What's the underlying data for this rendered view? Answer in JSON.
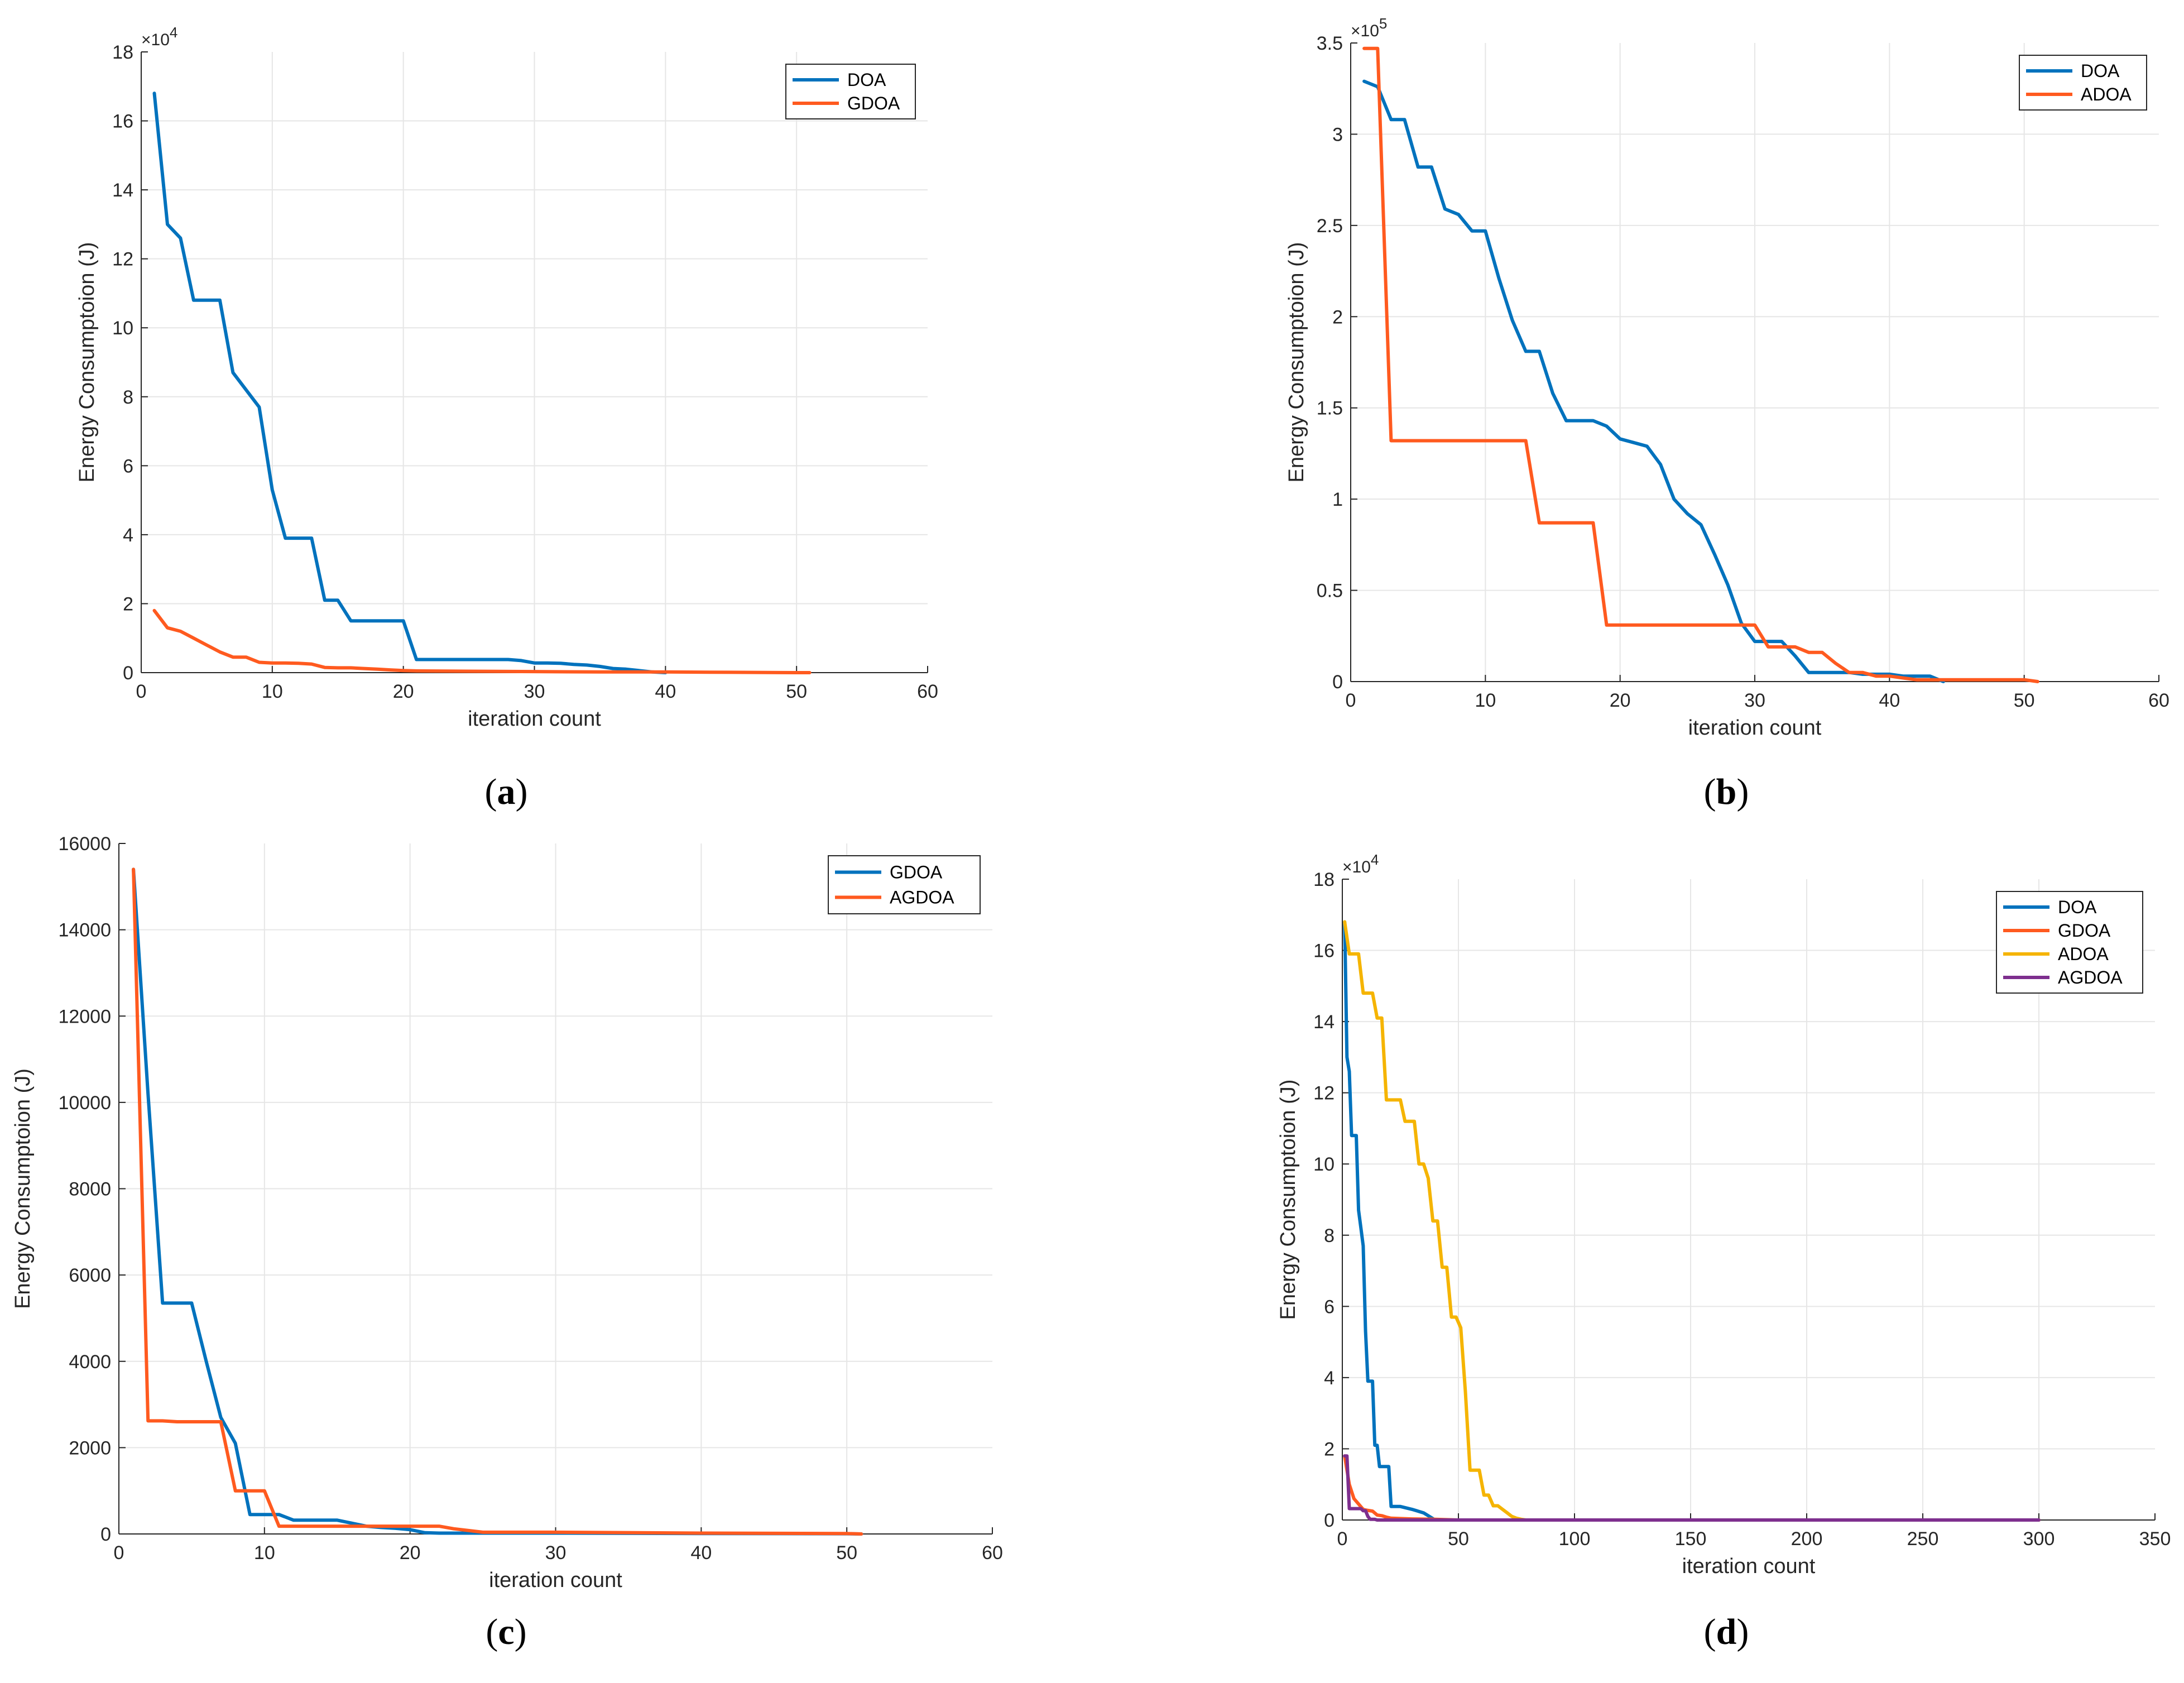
{
  "colors": {
    "blue": "#0072BD",
    "orange": "#FF5A1F",
    "yellow": "#F5B400",
    "purple": "#7E2F8E",
    "grid": "#e6e6e6",
    "axis": "#262626"
  },
  "chart_data": [
    {
      "type": "line",
      "caption": {
        "open": "(",
        "letter": "a",
        "close": ")"
      },
      "xlabel": "iteration count",
      "ylabel": "Energy Consumptoion (J)",
      "xlim": [
        0,
        60
      ],
      "ylim": [
        0,
        18
      ],
      "xticks": [
        0,
        10,
        20,
        30,
        40,
        50,
        60
      ],
      "yticks": [
        0,
        2,
        4,
        6,
        8,
        10,
        12,
        14,
        16,
        18
      ],
      "ytick_labels": [
        "0",
        "2",
        "4",
        "6",
        "8",
        "10",
        "12",
        "14",
        "16",
        "18"
      ],
      "y_multiplier": {
        "base": "×10",
        "power": "4"
      },
      "grid": true,
      "legend_position": "top-right",
      "series": [
        {
          "name": "DOA",
          "color": "#0072BD",
          "x": [
            1,
            2,
            3,
            4,
            5,
            6,
            7,
            8,
            9,
            10,
            11,
            12,
            13,
            14,
            15,
            16,
            17,
            18,
            19,
            20,
            21,
            22,
            23,
            24,
            25,
            26,
            27,
            28,
            29,
            30,
            31,
            32,
            33,
            34,
            35,
            36,
            37,
            38,
            39,
            40
          ],
          "y": [
            16.8,
            13.0,
            12.6,
            10.8,
            10.8,
            10.8,
            8.7,
            8.2,
            7.7,
            5.3,
            3.9,
            3.9,
            3.9,
            2.1,
            2.1,
            1.5,
            1.5,
            1.5,
            1.5,
            1.5,
            0.38,
            0.38,
            0.38,
            0.38,
            0.38,
            0.38,
            0.38,
            0.38,
            0.35,
            0.28,
            0.28,
            0.27,
            0.24,
            0.22,
            0.18,
            0.12,
            0.1,
            0.06,
            0.02,
            0.0
          ]
        },
        {
          "name": "GDOA",
          "color": "#FF5A1F",
          "x": [
            1,
            2,
            3,
            4,
            5,
            6,
            7,
            8,
            9,
            10,
            11,
            12,
            13,
            14,
            15,
            16,
            17,
            18,
            19,
            20,
            21,
            25,
            30,
            35,
            40,
            45,
            50,
            51
          ],
          "y": [
            1.8,
            1.3,
            1.2,
            1.0,
            0.8,
            0.6,
            0.45,
            0.45,
            0.3,
            0.28,
            0.28,
            0.27,
            0.25,
            0.15,
            0.14,
            0.14,
            0.12,
            0.1,
            0.08,
            0.06,
            0.05,
            0.04,
            0.03,
            0.02,
            0.02,
            0.01,
            0.0,
            0.0
          ]
        }
      ]
    },
    {
      "type": "line",
      "caption": {
        "open": "(",
        "letter": "b",
        "close": ")"
      },
      "xlabel": "iteration count",
      "ylabel": "Energy Consumptoion (J)",
      "xlim": [
        0,
        60
      ],
      "ylim": [
        0,
        3.5
      ],
      "xticks": [
        0,
        10,
        20,
        30,
        40,
        50,
        60
      ],
      "yticks": [
        0,
        0.5,
        1,
        1.5,
        2,
        2.5,
        3,
        3.5
      ],
      "ytick_labels": [
        "0",
        "0.5",
        "1",
        "1.5",
        "2",
        "2.5",
        "3",
        "3.5"
      ],
      "y_multiplier": {
        "base": "×10",
        "power": "5"
      },
      "grid": true,
      "legend_position": "top-right",
      "series": [
        {
          "name": "DOA",
          "color": "#0072BD",
          "x": [
            1,
            2,
            3,
            4,
            5,
            6,
            7,
            8,
            9,
            10,
            11,
            12,
            13,
            14,
            15,
            16,
            17,
            18,
            19,
            20,
            21,
            22,
            23,
            24,
            25,
            26,
            27,
            28,
            29,
            30,
            31,
            32,
            33,
            34,
            35,
            36,
            37,
            38,
            39,
            40,
            41,
            42,
            43,
            44
          ],
          "y": [
            3.29,
            3.26,
            3.08,
            3.08,
            2.82,
            2.82,
            2.59,
            2.56,
            2.47,
            2.47,
            2.21,
            1.98,
            1.81,
            1.81,
            1.58,
            1.43,
            1.43,
            1.43,
            1.4,
            1.33,
            1.31,
            1.29,
            1.19,
            1.0,
            0.92,
            0.86,
            0.7,
            0.53,
            0.32,
            0.22,
            0.22,
            0.22,
            0.14,
            0.05,
            0.05,
            0.05,
            0.05,
            0.04,
            0.04,
            0.04,
            0.03,
            0.03,
            0.03,
            0.0
          ]
        },
        {
          "name": "ADOA",
          "color": "#FF5A1F",
          "x": [
            1,
            2,
            3,
            4,
            13,
            14,
            15,
            16,
            17,
            18,
            19,
            20,
            30,
            31,
            32,
            33,
            34,
            35,
            36,
            37,
            38,
            39,
            40,
            41,
            42,
            45,
            50,
            51
          ],
          "y": [
            3.47,
            3.47,
            1.32,
            1.32,
            1.32,
            0.87,
            0.87,
            0.87,
            0.87,
            0.87,
            0.31,
            0.31,
            0.31,
            0.19,
            0.19,
            0.19,
            0.16,
            0.16,
            0.1,
            0.05,
            0.05,
            0.03,
            0.03,
            0.02,
            0.01,
            0.01,
            0.01,
            0.0
          ]
        }
      ]
    },
    {
      "type": "line",
      "caption": {
        "open": "(",
        "letter": "c",
        "close": ")"
      },
      "xlabel": "iteration count",
      "ylabel": "Energy Consumptoion (J)",
      "xlim": [
        0,
        60
      ],
      "ylim": [
        0,
        16000
      ],
      "xticks": [
        0,
        10,
        20,
        30,
        40,
        50,
        60
      ],
      "yticks": [
        0,
        2000,
        4000,
        6000,
        8000,
        10000,
        12000,
        14000,
        16000
      ],
      "ytick_labels": [
        "0",
        "2000",
        "4000",
        "6000",
        "8000",
        "10000",
        "12000",
        "14000",
        "16000"
      ],
      "grid": true,
      "legend_position": "top-right",
      "series": [
        {
          "name": "GDOA",
          "color": "#0072BD",
          "x": [
            1,
            2,
            3,
            4,
            5,
            6,
            7,
            8,
            9,
            10,
            11,
            12,
            13,
            14,
            15,
            16,
            17,
            18,
            19,
            20,
            21,
            22,
            25,
            30,
            40,
            50,
            51
          ],
          "y": [
            15400,
            10200,
            5350,
            5350,
            5350,
            4000,
            2700,
            2100,
            450,
            450,
            450,
            320,
            320,
            320,
            320,
            250,
            180,
            150,
            130,
            100,
            30,
            20,
            20,
            20,
            10,
            5,
            0
          ]
        },
        {
          "name": "AGDOA",
          "color": "#FF5A1F",
          "x": [
            1,
            2,
            3,
            4,
            5,
            6,
            7,
            8,
            9,
            10,
            11,
            12,
            13,
            14,
            15,
            16,
            17,
            18,
            19,
            20,
            21,
            22,
            23,
            25,
            30,
            40,
            50,
            51
          ],
          "y": [
            15400,
            2620,
            2620,
            2600,
            2600,
            2600,
            2600,
            1000,
            1000,
            1000,
            180,
            180,
            180,
            180,
            180,
            180,
            180,
            180,
            180,
            180,
            180,
            180,
            120,
            40,
            40,
            20,
            10,
            0
          ]
        }
      ]
    },
    {
      "type": "line",
      "caption": {
        "open": "(",
        "letter": "d",
        "close": ")"
      },
      "xlabel": "iteration count",
      "ylabel": "Energy Consumptoion (J)",
      "xlim": [
        0,
        350
      ],
      "ylim": [
        0,
        18
      ],
      "xticks": [
        0,
        50,
        100,
        150,
        200,
        250,
        300,
        350
      ],
      "yticks": [
        0,
        2,
        4,
        6,
        8,
        10,
        12,
        14,
        16,
        18
      ],
      "ytick_labels": [
        "0",
        "2",
        "4",
        "6",
        "8",
        "10",
        "12",
        "14",
        "16",
        "18"
      ],
      "y_multiplier": {
        "base": "×10",
        "power": "4"
      },
      "grid": true,
      "legend_position": "top-right",
      "series": [
        {
          "name": "DOA",
          "color": "#0072BD",
          "x": [
            1,
            2,
            3,
            4,
            5,
            6,
            7,
            8,
            9,
            10,
            11,
            12,
            13,
            14,
            15,
            16,
            17,
            18,
            19,
            20,
            21,
            25,
            30,
            35,
            40,
            300
          ],
          "y": [
            16.8,
            13.0,
            12.6,
            10.8,
            10.8,
            10.8,
            8.7,
            8.2,
            7.7,
            5.3,
            3.9,
            3.9,
            3.9,
            2.1,
            2.1,
            1.5,
            1.5,
            1.5,
            1.5,
            1.5,
            0.38,
            0.38,
            0.3,
            0.2,
            0.0,
            0.0
          ]
        },
        {
          "name": "GDOA",
          "color": "#FF5A1F",
          "x": [
            1,
            3,
            5,
            7,
            9,
            10,
            13,
            15,
            17,
            19,
            21,
            25,
            30,
            40,
            50,
            300
          ],
          "y": [
            1.8,
            1.0,
            0.6,
            0.45,
            0.3,
            0.28,
            0.25,
            0.14,
            0.12,
            0.08,
            0.05,
            0.04,
            0.03,
            0.02,
            0.0,
            0.0
          ]
        },
        {
          "name": "ADOA",
          "color": "#F5B400",
          "x": [
            1,
            3,
            5,
            7,
            9,
            11,
            13,
            15,
            17,
            19,
            21,
            23,
            25,
            27,
            29,
            31,
            33,
            35,
            37,
            39,
            41,
            43,
            45,
            47,
            49,
            51,
            53,
            55,
            57,
            59,
            61,
            63,
            65,
            67,
            69,
            71,
            73,
            75,
            77,
            79,
            300
          ],
          "y": [
            16.8,
            15.9,
            15.9,
            15.9,
            14.8,
            14.8,
            14.8,
            14.1,
            14.1,
            11.8,
            11.8,
            11.8,
            11.8,
            11.2,
            11.2,
            11.2,
            10.0,
            10.0,
            9.6,
            8.4,
            8.4,
            7.1,
            7.1,
            5.7,
            5.7,
            5.4,
            3.6,
            1.4,
            1.4,
            1.4,
            0.7,
            0.7,
            0.4,
            0.4,
            0.3,
            0.2,
            0.1,
            0.05,
            0.02,
            0.0,
            0.0
          ]
        },
        {
          "name": "AGDOA",
          "color": "#7E2F8E",
          "x": [
            1,
            2,
            3,
            4,
            5,
            6,
            7,
            8,
            9,
            10,
            11,
            12,
            13,
            14,
            15,
            20,
            30,
            300
          ],
          "y": [
            1.8,
            1.8,
            0.32,
            0.32,
            0.32,
            0.32,
            0.32,
            0.32,
            0.26,
            0.26,
            0.1,
            0.02,
            0.02,
            0.02,
            0.0,
            0.0,
            0.0,
            0.0
          ]
        }
      ]
    }
  ]
}
